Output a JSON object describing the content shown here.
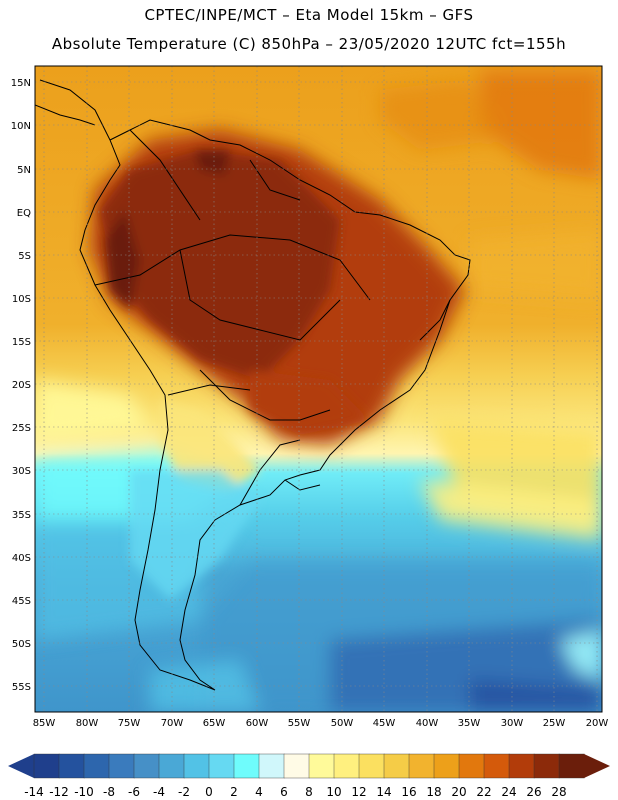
{
  "header": {
    "line1": "CPTEC/INPE/MCT –  Eta Model 15km – GFS",
    "line2": "Absolute Temperature (C) 850hPa – 23/05/2020 12UTC fct=155h"
  },
  "axes": {
    "lat_labels": [
      "15N",
      "10N",
      "5N",
      "EQ",
      "5S",
      "10S",
      "15S",
      "20S",
      "25S",
      "30S",
      "35S",
      "40S",
      "45S",
      "50S",
      "55S"
    ],
    "lon_labels": [
      "85W",
      "80W",
      "75W",
      "70W",
      "65W",
      "60W",
      "55W",
      "50W",
      "45W",
      "40W",
      "35W",
      "30W",
      "25W",
      "20W"
    ]
  },
  "colorbar": {
    "ticks": [
      "-14",
      "-12",
      "-10",
      "-8",
      "-6",
      "-4",
      "-2",
      "0",
      "2",
      "4",
      "6",
      "8",
      "10",
      "12",
      "14",
      "16",
      "18",
      "20",
      "22",
      "24",
      "26",
      "28"
    ],
    "colors": [
      "#1f3f8c",
      "#24529e",
      "#2d66ad",
      "#3a7bbd",
      "#4690c7",
      "#4aa8d6",
      "#52c2e6",
      "#66d9f2",
      "#6ffcfc",
      "#d0f7fb",
      "#fffbe6",
      "#fffa9a",
      "#fff07f",
      "#fbe060",
      "#f5cc47",
      "#f2b32e",
      "#eda01a",
      "#e2780d",
      "#d45a0b",
      "#b23c0a",
      "#8c2a0a",
      "#6b1e0b"
    ],
    "under_color": "#1f3f8c",
    "over_color": "#6b1e0b"
  }
}
